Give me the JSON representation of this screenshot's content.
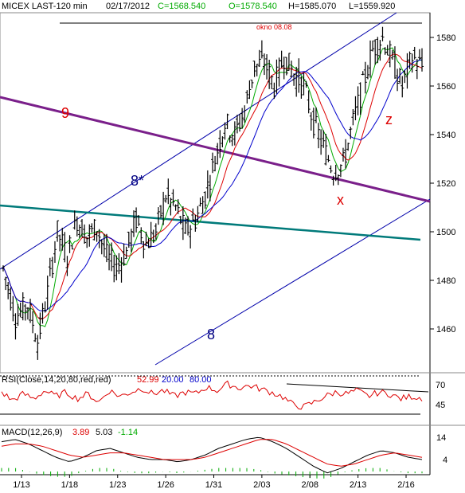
{
  "header": {
    "symbol": "MICEX LAST-120 min",
    "date": "02/17/2012",
    "close": "C=1568.540",
    "open": "O=1578.540",
    "high": "H=1585.070",
    "low": "L=1559.920"
  },
  "colors": {
    "bars": "#000000",
    "ma_fast": "#00aa00",
    "ma_mid": "#dd0000",
    "ma_slow": "#0000cc",
    "channel": "#0000aa",
    "line9": "#7a1f8a",
    "teal_line": "#007a7a",
    "rsi": "#dd0000",
    "macd": "#000000",
    "macd_signal": "#dd0000",
    "macd_hist": "#00aa00"
  },
  "annotations": {
    "okno": "okno 08.08",
    "wave_9": "9",
    "wave_8star": "8*",
    "wave_8": "8",
    "wave_x": "x",
    "wave_z": "z"
  },
  "rsi_panel": {
    "label_prefix": "RSI(Close,14,20,80,red,red)",
    "value": "52.99",
    "lower": "20.00",
    "upper": "80.00",
    "ticks": [
      "70",
      "45"
    ]
  },
  "macd_panel": {
    "label_prefix": "MACD(12,26,9)",
    "macd": "3.89",
    "signal": "5.03",
    "hist": "-1.14",
    "ticks": [
      "14",
      "4"
    ]
  },
  "chart_data": {
    "type": "bar",
    "title": "MICEX LAST-120 min",
    "ylim": [
      1440,
      1590
    ],
    "y_ticks": [
      "1580",
      "1560",
      "1540",
      "1520",
      "1500",
      "1480",
      "1460"
    ],
    "x_ticks": [
      "1/13",
      "1/18",
      "1/23",
      "1/26",
      "1/31",
      "2/03",
      "2/08",
      "2/13",
      "2/16"
    ],
    "price_path": [
      [
        0,
        1485
      ],
      [
        5,
        1465
      ],
      [
        10,
        1470
      ],
      [
        14,
        1455
      ],
      [
        18,
        1475
      ],
      [
        22,
        1500
      ],
      [
        26,
        1490
      ],
      [
        30,
        1505
      ],
      [
        34,
        1498
      ],
      [
        38,
        1502
      ],
      [
        42,
        1490
      ],
      [
        46,
        1485
      ],
      [
        50,
        1492
      ],
      [
        54,
        1505
      ],
      [
        58,
        1495
      ],
      [
        62,
        1500
      ],
      [
        66,
        1515
      ],
      [
        70,
        1510
      ],
      [
        74,
        1500
      ],
      [
        78,
        1505
      ],
      [
        82,
        1515
      ],
      [
        86,
        1530
      ],
      [
        90,
        1545
      ],
      [
        94,
        1540
      ],
      [
        98,
        1550
      ],
      [
        102,
        1568
      ],
      [
        106,
        1570
      ],
      [
        110,
        1560
      ],
      [
        114,
        1572
      ],
      [
        118,
        1565
      ],
      [
        122,
        1560
      ],
      [
        126,
        1545
      ],
      [
        130,
        1535
      ],
      [
        134,
        1525
      ],
      [
        138,
        1528
      ],
      [
        142,
        1545
      ],
      [
        146,
        1560
      ],
      [
        150,
        1575
      ],
      [
        154,
        1580
      ],
      [
        158,
        1570
      ],
      [
        162,
        1560
      ],
      [
        166,
        1572
      ],
      [
        170,
        1568
      ]
    ],
    "rsi_values": [
      60,
      50,
      58,
      52,
      62,
      55,
      60,
      52,
      58,
      48,
      62,
      55,
      60,
      65,
      58,
      62,
      55,
      60,
      58,
      66,
      62,
      70,
      65,
      68,
      64,
      60,
      55,
      45,
      42,
      48,
      55,
      60,
      58,
      62,
      55,
      60,
      58,
      52,
      55,
      53
    ],
    "macd_values": [
      12,
      13,
      11,
      8,
      5,
      3,
      5,
      8,
      9,
      7,
      5,
      4,
      4,
      3,
      4,
      6,
      9,
      11,
      13,
      14,
      12,
      9,
      5,
      1,
      -2,
      0,
      3,
      6,
      8,
      7,
      5,
      4
    ],
    "signal_values": [
      10,
      11,
      11,
      10,
      8,
      6,
      5,
      6,
      7,
      7,
      6,
      5,
      4,
      4,
      4,
      5,
      7,
      9,
      11,
      13,
      13,
      11,
      8,
      5,
      2,
      1,
      2,
      4,
      6,
      7,
      6,
      5
    ]
  }
}
